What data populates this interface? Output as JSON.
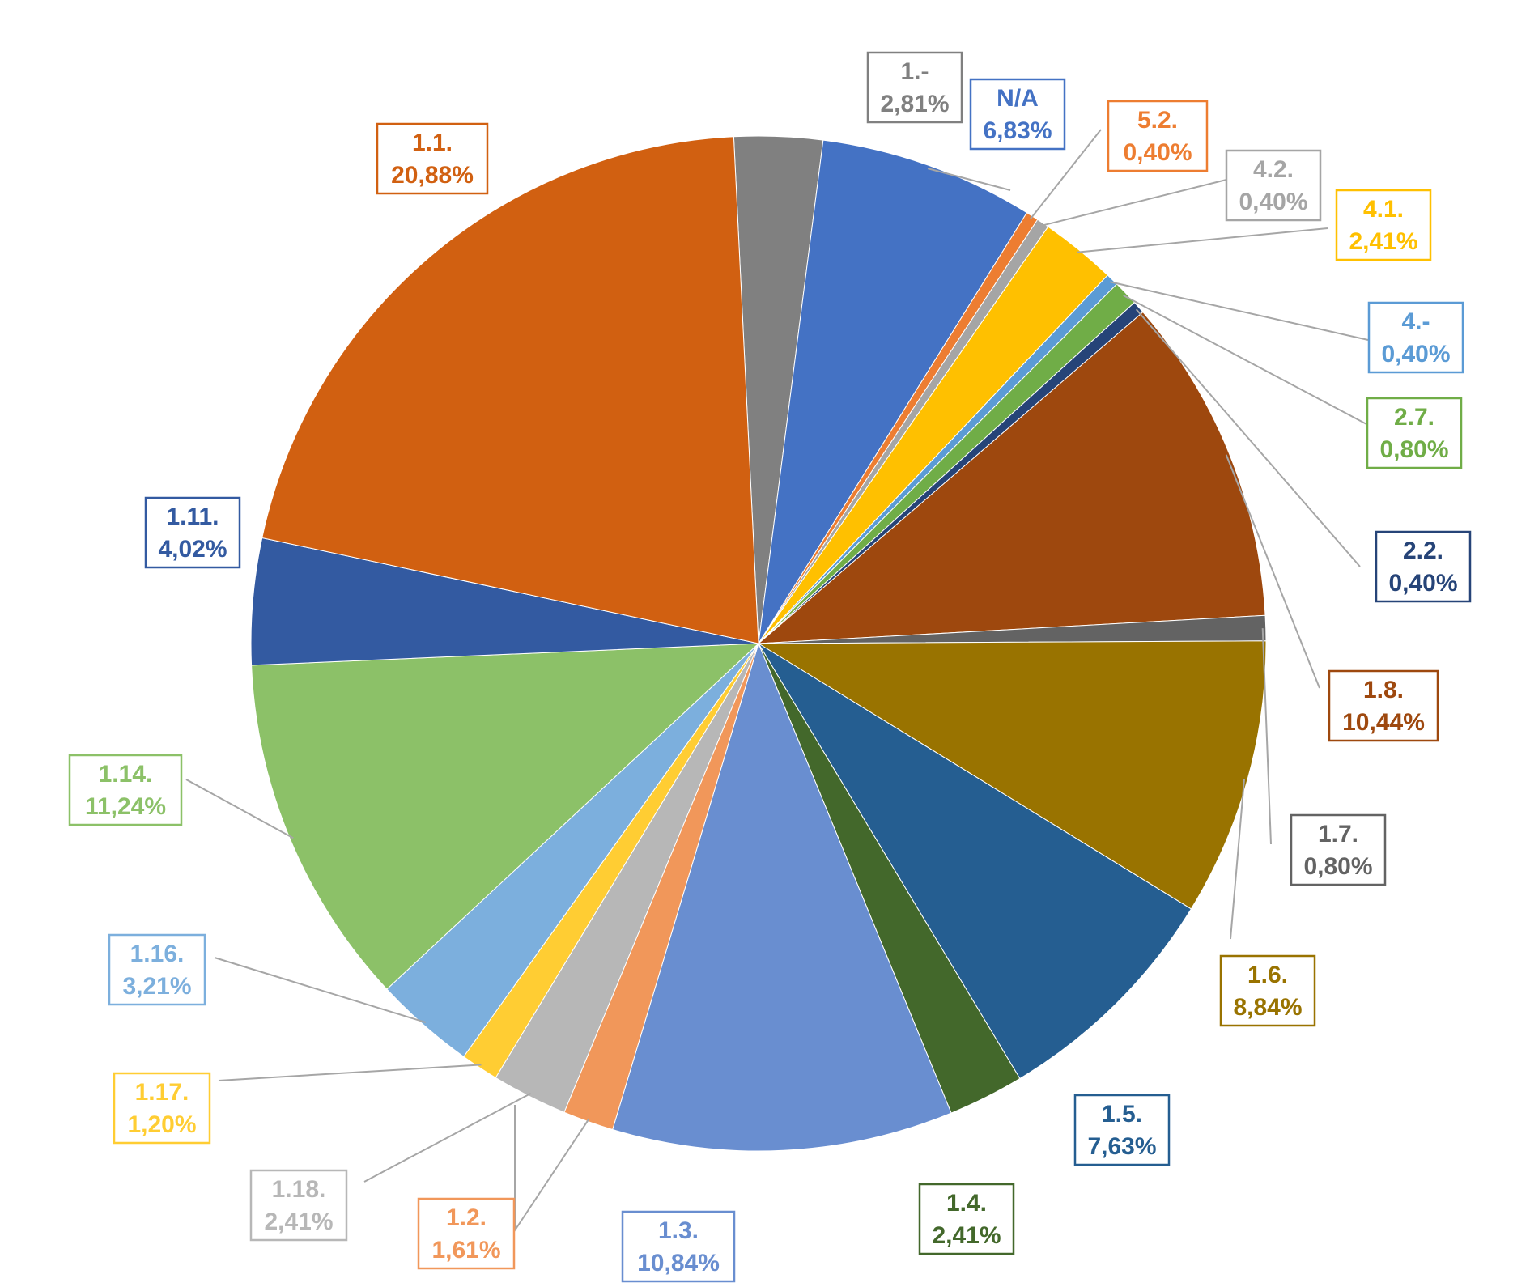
{
  "chart_data": {
    "type": "pie",
    "title": "",
    "start_angle_deg": 357.2,
    "direction": "clockwise",
    "slices": [
      {
        "name": "1.-",
        "label": "2,81%",
        "value": 2.81,
        "color": "#808080"
      },
      {
        "name": "N/A",
        "label": "6,83%",
        "value": 6.83,
        "color": "#4472c4"
      },
      {
        "name": "5.2.",
        "label": "0,40%",
        "value": 0.4,
        "color": "#ed7d31"
      },
      {
        "name": "4.2.",
        "label": "0,40%",
        "value": 0.4,
        "color": "#a5a5a5"
      },
      {
        "name": "4.1.",
        "label": "2,41%",
        "value": 2.41,
        "color": "#ffc000"
      },
      {
        "name": "4.-",
        "label": "0,40%",
        "value": 0.4,
        "color": "#5b9bd5"
      },
      {
        "name": "2.7.",
        "label": "0,80%",
        "value": 0.8,
        "color": "#70ad47"
      },
      {
        "name": "2.2.",
        "label": "0,40%",
        "value": 0.4,
        "color": "#264478"
      },
      {
        "name": "1.8.",
        "label": "10,44%",
        "value": 10.44,
        "color": "#9e480e"
      },
      {
        "name": "1.7.",
        "label": "0,80%",
        "value": 0.8,
        "color": "#636363"
      },
      {
        "name": "1.6.",
        "label": "8,84%",
        "value": 8.84,
        "color": "#997300"
      },
      {
        "name": "1.5.",
        "label": "7,63%",
        "value": 7.63,
        "color": "#255e91"
      },
      {
        "name": "1.4.",
        "label": "2,41%",
        "value": 2.41,
        "color": "#43682b"
      },
      {
        "name": "1.3.",
        "label": "10,84%",
        "value": 10.84,
        "color": "#698ed0"
      },
      {
        "name": "1.2.",
        "label": "1,61%",
        "value": 1.61,
        "color": "#f1975a"
      },
      {
        "name": "1.18.",
        "label": "2,41%",
        "value": 2.41,
        "color": "#b7b7b7"
      },
      {
        "name": "1.17.",
        "label": "1,20%",
        "value": 1.2,
        "color": "#ffcd33"
      },
      {
        "name": "1.16.",
        "label": "3,21%",
        "value": 3.21,
        "color": "#7cafdd"
      },
      {
        "name": "1.14.",
        "label": "11,24%",
        "value": 11.24,
        "color": "#8cc168"
      },
      {
        "name": "1.11.",
        "label": "4,02%",
        "value": 4.02,
        "color": "#335aa1"
      },
      {
        "name": "1.1.",
        "label": "20,88%",
        "value": 20.88,
        "color": "#d16011"
      }
    ],
    "label_colors": {
      "1.-": "#808080",
      "N/A": "#4472c4",
      "5.2.": "#ed7d31",
      "4.2.": "#a5a5a5",
      "4.1.": "#ffc000",
      "4.-": "#5b9bd5",
      "2.7.": "#70ad47",
      "2.2.": "#264478",
      "1.8.": "#9e480e",
      "1.7.": "#636363",
      "1.6.": "#997300",
      "1.5.": "#255e91",
      "1.4.": "#43682b",
      "1.3.": "#698ed0",
      "1.2.": "#f1975a",
      "1.18.": "#b7b7b7",
      "1.17.": "#ffcd33",
      "1.16.": "#7cafdd",
      "1.14.": "#8cc168",
      "1.11.": "#335aa1",
      "1.1.": "#d16011"
    },
    "legend": "none"
  }
}
